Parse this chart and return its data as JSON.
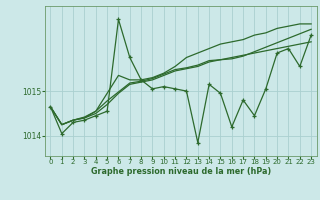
{
  "xlabel": "Graphe pression niveau de la mer (hPa)",
  "background_color": "#cce8e8",
  "grid_color": "#aad0d0",
  "line_color": "#2d6a2d",
  "marker_color": "#2d6a2d",
  "yticks": [
    1014,
    1015
  ],
  "ylim": [
    1013.55,
    1016.9
  ],
  "xlim": [
    -0.5,
    23.5
  ],
  "xticks": [
    0,
    1,
    2,
    3,
    4,
    5,
    6,
    7,
    8,
    9,
    10,
    11,
    12,
    13,
    14,
    15,
    16,
    17,
    18,
    19,
    20,
    21,
    22,
    23
  ],
  "series": [
    [
      1014.65,
      1014.05,
      1014.3,
      1014.35,
      1014.45,
      1014.55,
      1016.6,
      1015.75,
      1015.25,
      1015.05,
      1015.1,
      1015.05,
      1015.0,
      1013.85,
      1015.15,
      1014.95,
      1014.2,
      1014.8,
      1014.45,
      1015.05,
      1015.85,
      1015.95,
      1015.55,
      1016.25
    ],
    [
      1014.65,
      1014.25,
      1014.35,
      1014.4,
      1014.55,
      1014.95,
      1015.35,
      1015.25,
      1015.25,
      1015.3,
      1015.4,
      1015.55,
      1015.75,
      1015.85,
      1015.95,
      1016.05,
      1016.1,
      1016.15,
      1016.25,
      1016.3,
      1016.4,
      1016.45,
      1016.5,
      1016.5
    ],
    [
      1014.65,
      1014.25,
      1014.35,
      1014.4,
      1014.5,
      1014.7,
      1014.95,
      1015.15,
      1015.2,
      1015.25,
      1015.35,
      1015.45,
      1015.5,
      1015.55,
      1015.65,
      1015.7,
      1015.75,
      1015.8,
      1015.85,
      1015.9,
      1015.95,
      1016.0,
      1016.05,
      1016.1
    ],
    [
      1014.65,
      1014.25,
      1014.35,
      1014.42,
      1014.55,
      1014.78,
      1014.98,
      1015.18,
      1015.22,
      1015.28,
      1015.38,
      1015.48,
      1015.52,
      1015.58,
      1015.68,
      1015.7,
      1015.72,
      1015.78,
      1015.88,
      1015.98,
      1016.08,
      1016.18,
      1016.28,
      1016.38
    ]
  ]
}
